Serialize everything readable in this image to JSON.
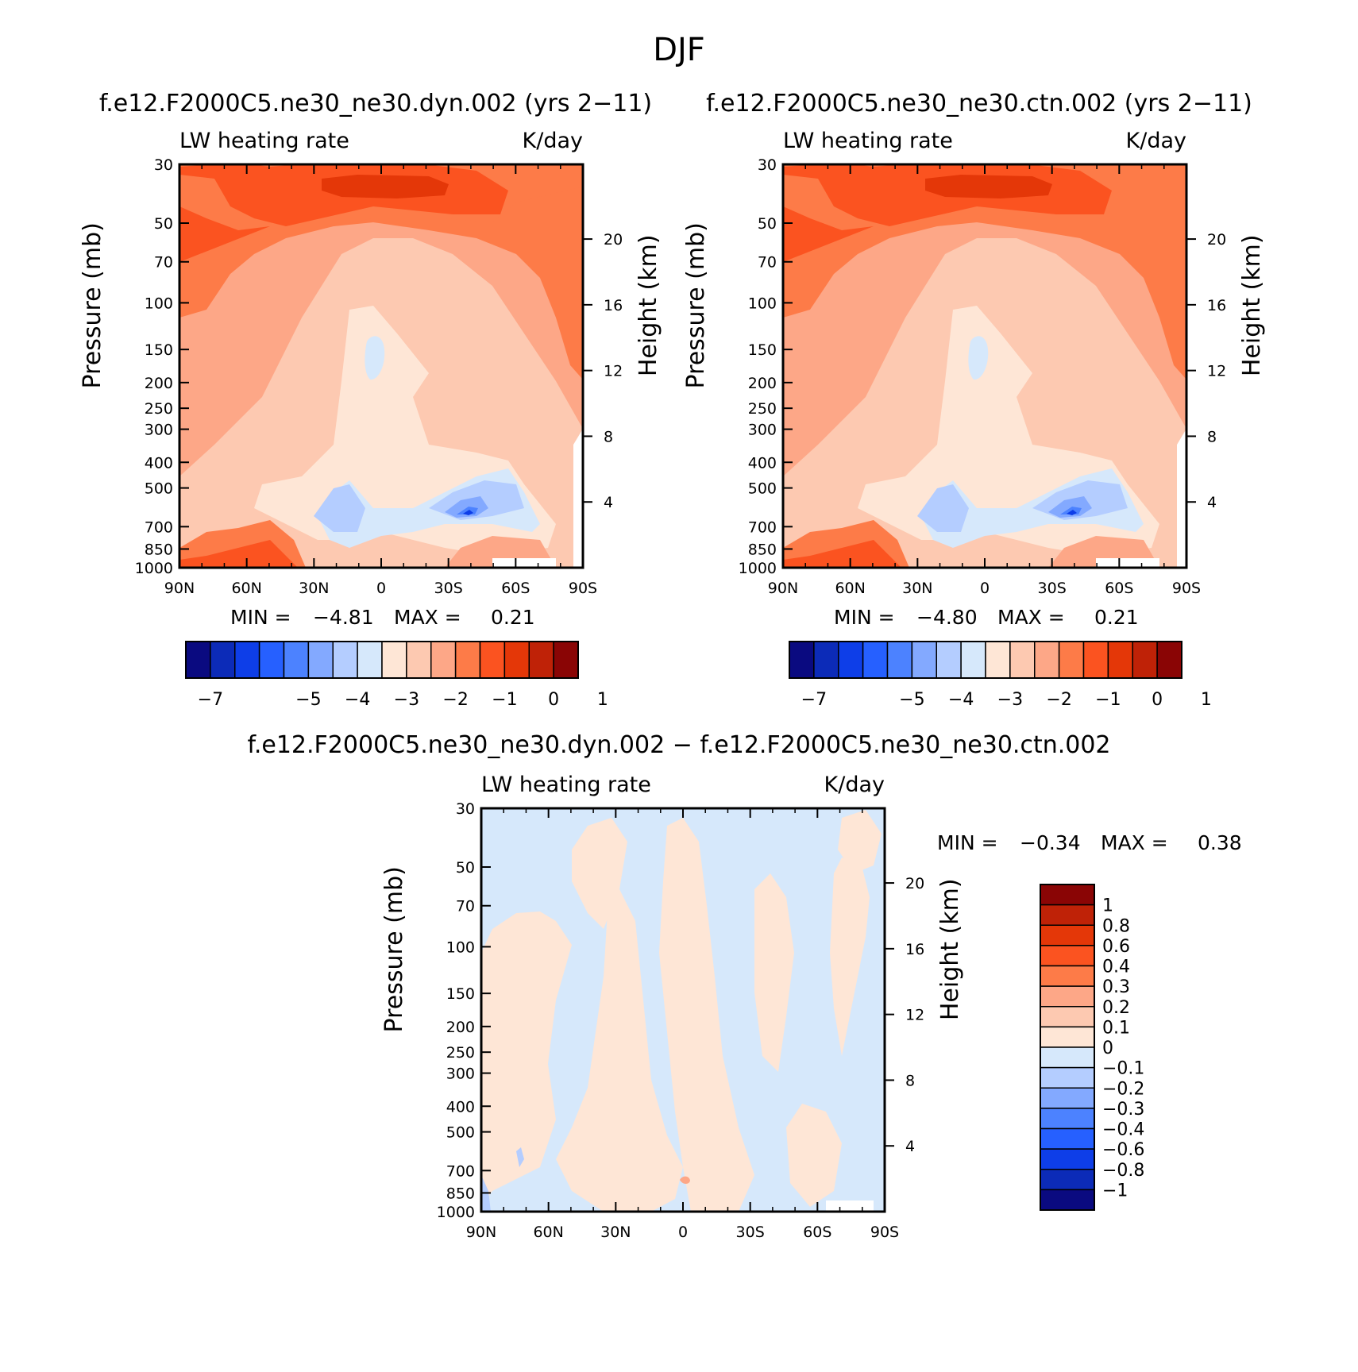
{
  "figure": {
    "title": "DJF",
    "panel_left_title": "f.e12.F2000C5.ne30_ne30.dyn.002 (yrs 2−11)",
    "panel_right_title": "f.e12.F2000C5.ne30_ne30.ctn.002 (yrs 2−11)",
    "panel_diff_title": "f.e12.F2000C5.ne30_ne30.dyn.002 − f.e12.F2000C5.ne30_ne30.ctn.002",
    "variable_label": "LW heating rate",
    "units_label": "K/day",
    "left_axis_label": "Pressure (mb)",
    "right_axis_label": "Height (km)"
  },
  "stats": {
    "left": {
      "min_label": "MIN =",
      "min": "−4.81",
      "max_label": "MAX =",
      "max": "0.21"
    },
    "right": {
      "min_label": "MIN =",
      "min": "−4.80",
      "max_label": "MAX =",
      "max": "0.21"
    },
    "diff": {
      "min_label": "MIN =",
      "min": "−0.34",
      "max_label": "MAX =",
      "max": "0.38"
    }
  },
  "colorbars": {
    "main": {
      "colors": [
        "#0a0a80",
        "#0c2bb8",
        "#0e3ee8",
        "#2660ff",
        "#4c82ff",
        "#83a9ff",
        "#b4cdff",
        "#d6e8fb",
        "#fee6d6",
        "#fdc9b1",
        "#fda787",
        "#fd7b48",
        "#fb5320",
        "#e43708",
        "#bf2207",
        "#8a0505"
      ],
      "tick_labels": [
        "−7",
        "−5",
        "−4",
        "−3",
        "−2",
        "−1",
        "0",
        "1"
      ]
    },
    "diff": {
      "colors": [
        "#0a0a80",
        "#0c2bb8",
        "#0e3ee8",
        "#2660ff",
        "#4c82ff",
        "#83a9ff",
        "#b4cdff",
        "#d6e8fb",
        "#fee6d6",
        "#fdc9b1",
        "#fda787",
        "#fd7b48",
        "#fb5320",
        "#e43708",
        "#bf2207",
        "#8a0505"
      ],
      "tick_labels": [
        "1",
        "0.8",
        "0.6",
        "0.4",
        "0.3",
        "0.2",
        "0.1",
        "0",
        "−0.1",
        "−0.2",
        "−0.3",
        "−0.4",
        "−0.6",
        "−0.8",
        "−1"
      ]
    }
  },
  "chart_data": [
    {
      "type": "heatmap",
      "title": "f.e12.F2000C5.ne30_ne30.dyn.002 (yrs 2−11)",
      "subtitle_left": "LW heating rate",
      "subtitle_right": "K/day",
      "xlabel": "",
      "ylabel": "Pressure (mb)",
      "ylabel_right": "Height (km)",
      "x_ticks": [
        "90N",
        "60N",
        "30N",
        "0",
        "30S",
        "60S",
        "90S"
      ],
      "y_ticks": [
        "30",
        "50",
        "70",
        "100",
        "150",
        "200",
        "250",
        "300",
        "400",
        "500",
        "700",
        "850",
        "1000"
      ],
      "y_scale": "log",
      "y_right_ticks": [
        "20",
        "16",
        "12",
        "8",
        "4"
      ],
      "min": -4.81,
      "max": 0.21
    },
    {
      "type": "heatmap",
      "title": "f.e12.F2000C5.ne30_ne30.ctn.002 (yrs 2−11)",
      "subtitle_left": "LW heating rate",
      "subtitle_right": "K/day",
      "xlabel": "",
      "ylabel": "Pressure (mb)",
      "ylabel_right": "Height (km)",
      "x_ticks": [
        "90N",
        "60N",
        "30N",
        "0",
        "30S",
        "60S",
        "90S"
      ],
      "y_ticks": [
        "30",
        "50",
        "70",
        "100",
        "150",
        "200",
        "250",
        "300",
        "400",
        "500",
        "700",
        "850",
        "1000"
      ],
      "y_scale": "log",
      "y_right_ticks": [
        "20",
        "16",
        "12",
        "8",
        "4"
      ],
      "min": -4.8,
      "max": 0.21
    },
    {
      "type": "heatmap",
      "title": "f.e12.F2000C5.ne30_ne30.dyn.002 − f.e12.F2000C5.ne30_ne30.ctn.002",
      "subtitle_left": "LW heating rate",
      "subtitle_right": "K/day",
      "xlabel": "",
      "ylabel": "Pressure (mb)",
      "ylabel_right": "Height (km)",
      "x_ticks": [
        "90N",
        "60N",
        "30N",
        "0",
        "30S",
        "60S",
        "90S"
      ],
      "y_ticks": [
        "30",
        "50",
        "70",
        "100",
        "150",
        "200",
        "250",
        "300",
        "400",
        "500",
        "700",
        "850",
        "1000"
      ],
      "y_scale": "log",
      "y_right_ticks": [
        "20",
        "16",
        "12",
        "8",
        "4"
      ],
      "min": -0.34,
      "max": 0.38
    }
  ]
}
